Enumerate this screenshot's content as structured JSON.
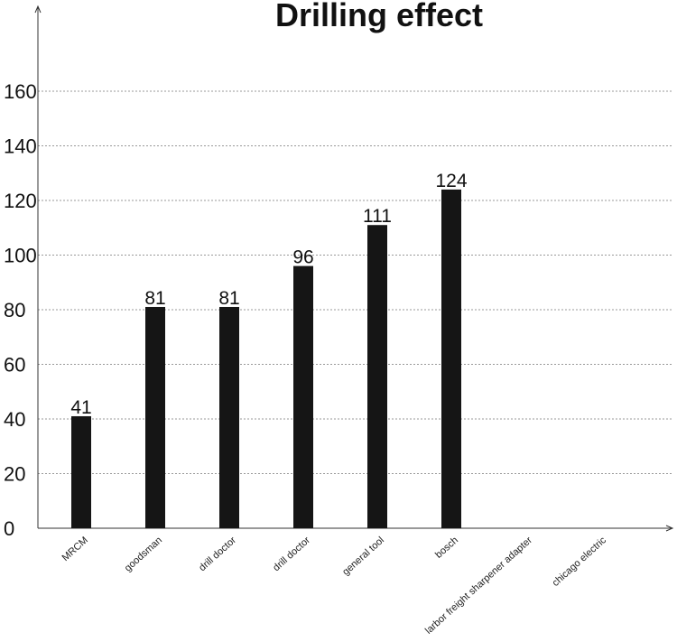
{
  "chart_data": {
    "type": "bar",
    "title": "Drilling effect",
    "xlabel": "",
    "ylabel": "",
    "categories": [
      "MRCM",
      "goodsman",
      "drill doctor",
      "drill doctor",
      "general tool",
      "bosch",
      "larbor freight sharpener adapter",
      "chicago electric"
    ],
    "values": [
      41,
      81,
      81,
      96,
      111,
      124,
      null,
      null
    ],
    "data_labels": [
      "41",
      "81",
      "81",
      "96",
      "111",
      "124",
      "",
      ""
    ],
    "ylim": [
      0,
      160
    ],
    "yticks": [
      0,
      20,
      40,
      60,
      80,
      100,
      120,
      140,
      160
    ],
    "grid": true,
    "bar_color": "#151515"
  }
}
